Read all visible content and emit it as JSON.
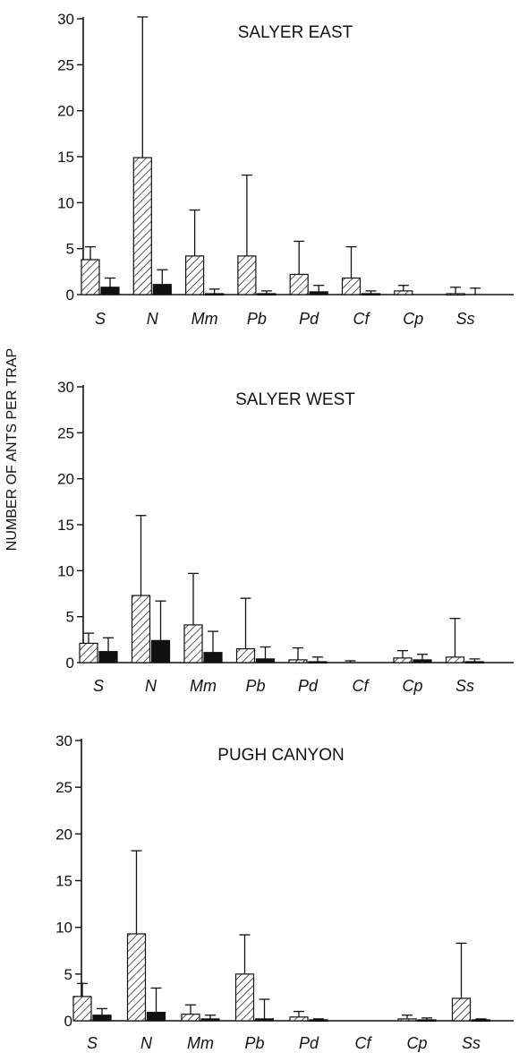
{
  "ylabel": "NUMBER OF ANTS PER TRAP",
  "chart_data": [
    {
      "type": "bar",
      "title": "SALYER EAST",
      "categories": [
        "S",
        "N",
        "Mm",
        "Pb",
        "Pd",
        "Cf",
        "Cp",
        "Ss"
      ],
      "ylim": [
        0,
        30
      ],
      "yticks": [
        0,
        5,
        10,
        15,
        20,
        25,
        30
      ],
      "series": [
        {
          "pattern": "hatched",
          "values": [
            3.8,
            14.9,
            4.2,
            4.2,
            2.2,
            1.8,
            0.4,
            0.1
          ],
          "error_upper": [
            5.2,
            30.2,
            9.2,
            13.0,
            5.8,
            5.2,
            1.0,
            0.8
          ]
        },
        {
          "pattern": "solid",
          "values": [
            0.8,
            1.1,
            0.1,
            0.1,
            0.3,
            0.1,
            0.0,
            0.0
          ],
          "error_upper": [
            1.8,
            2.7,
            0.6,
            0.4,
            1.0,
            0.4,
            0.0,
            0.7
          ]
        }
      ]
    },
    {
      "type": "bar",
      "title": "SALYER WEST",
      "categories": [
        "S",
        "N",
        "Mm",
        "Pb",
        "Pd",
        "Cf",
        "Cp",
        "Ss"
      ],
      "ylim": [
        0,
        30
      ],
      "yticks": [
        0,
        5,
        10,
        15,
        20,
        25,
        30
      ],
      "series": [
        {
          "pattern": "hatched",
          "values": [
            2.1,
            7.3,
            4.1,
            1.5,
            0.3,
            0.0,
            0.5,
            0.6
          ],
          "error_upper": [
            3.2,
            16.0,
            9.7,
            7.0,
            1.6,
            0.2,
            1.3,
            4.8
          ]
        },
        {
          "pattern": "solid",
          "values": [
            1.2,
            2.4,
            1.1,
            0.4,
            0.1,
            0.0,
            0.3,
            0.1
          ],
          "error_upper": [
            2.7,
            6.7,
            3.4,
            1.7,
            0.6,
            0.0,
            0.9,
            0.4
          ]
        }
      ]
    },
    {
      "type": "bar",
      "title": "PUGH CANYON",
      "categories": [
        "S",
        "N",
        "Mm",
        "Pb",
        "Pd",
        "Cf",
        "Cp",
        "Ss"
      ],
      "ylim": [
        0,
        30
      ],
      "yticks": [
        0,
        5,
        10,
        15,
        20,
        25,
        30
      ],
      "series": [
        {
          "pattern": "hatched",
          "values": [
            2.6,
            9.3,
            0.7,
            5.0,
            0.4,
            0.0,
            0.2,
            2.4
          ],
          "error_upper": [
            4.0,
            18.2,
            1.7,
            9.2,
            1.0,
            0.0,
            0.6,
            8.3
          ]
        },
        {
          "pattern": "solid",
          "values": [
            0.6,
            0.9,
            0.2,
            0.2,
            0.1,
            0.0,
            0.1,
            0.1
          ],
          "error_upper": [
            1.3,
            3.5,
            0.6,
            2.3,
            0.2,
            0.0,
            0.3,
            0.2
          ]
        }
      ]
    }
  ]
}
